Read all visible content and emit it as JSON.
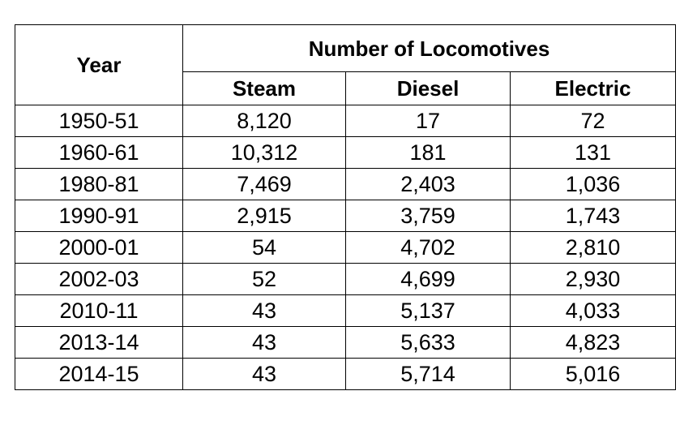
{
  "chart_data": {
    "type": "table",
    "header": {
      "year_label": "Year",
      "group_label": "Number of Locomotives",
      "columns": [
        "Steam",
        "Diesel",
        "Electric"
      ]
    },
    "rows": [
      {
        "year": "1950-51",
        "steam": "8,120",
        "diesel": "17",
        "electric": "72"
      },
      {
        "year": "1960-61",
        "steam": "10,312",
        "diesel": "181",
        "electric": "131"
      },
      {
        "year": "1980-81",
        "steam": "7,469",
        "diesel": "2,403",
        "electric": "1,036"
      },
      {
        "year": "1990-91",
        "steam": "2,915",
        "diesel": "3,759",
        "electric": "1,743"
      },
      {
        "year": "2000-01",
        "steam": "54",
        "diesel": "4,702",
        "electric": "2,810"
      },
      {
        "year": "2002-03",
        "steam": "52",
        "diesel": "4,699",
        "electric": "2,930"
      },
      {
        "year": "2010-11",
        "steam": "43",
        "diesel": "5,137",
        "electric": "4,033"
      },
      {
        "year": "2013-14",
        "steam": "43",
        "diesel": "5,633",
        "electric": "4,823"
      },
      {
        "year": "2014-15",
        "steam": "43",
        "diesel": "5,714",
        "electric": "5,016"
      }
    ]
  }
}
